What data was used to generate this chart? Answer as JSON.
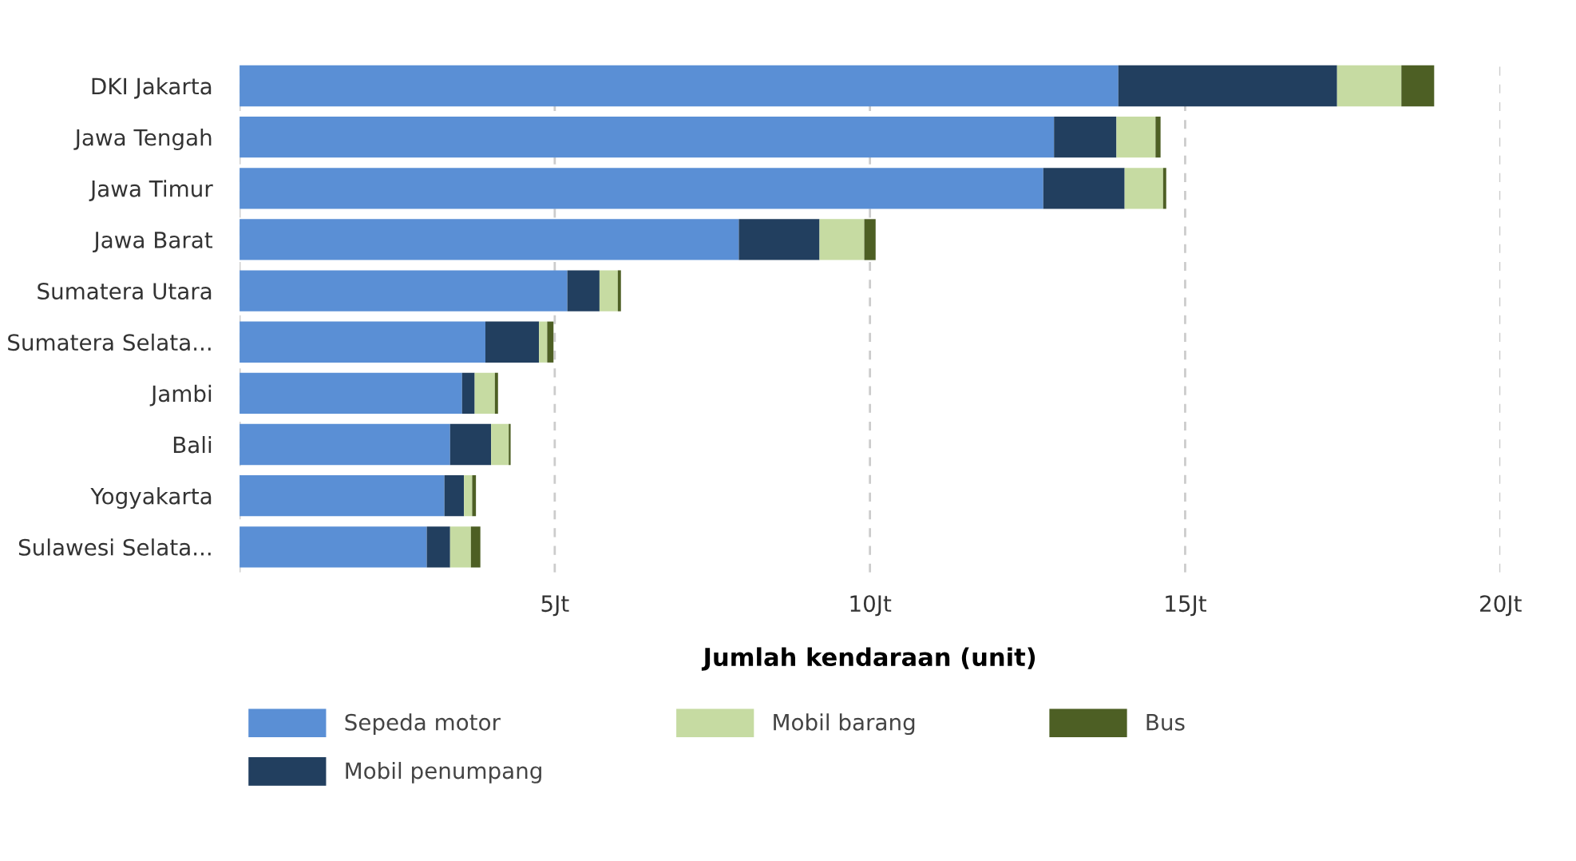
{
  "chart_data": {
    "type": "bar",
    "orientation": "horizontal",
    "stacked": true,
    "xlabel": "Jumlah kendaraan (unit)",
    "categories": [
      "DKI Jakarta",
      "Jawa Tengah",
      "Jawa Timur",
      "Jawa Barat",
      "Sumatera Utara",
      "Sumatera Selata...",
      "Jambi",
      "Bali",
      "Yogyakarta",
      "Sulawesi Selata..."
    ],
    "series": [
      {
        "name": "Sepeda motor",
        "color": "#5a8fd5",
        "values": [
          13.94,
          12.92,
          12.75,
          7.92,
          5.2,
          3.9,
          3.53,
          3.34,
          3.25,
          2.97
        ]
      },
      {
        "name": "Mobil penumpang",
        "color": "#223f5f",
        "values": [
          3.47,
          0.99,
          1.29,
          1.28,
          0.51,
          0.85,
          0.2,
          0.65,
          0.31,
          0.37
        ]
      },
      {
        "name": "Mobil barang",
        "color": "#c6dba2",
        "values": [
          1.02,
          0.62,
          0.61,
          0.71,
          0.29,
          0.13,
          0.32,
          0.28,
          0.13,
          0.33
        ]
      },
      {
        "name": "Bus",
        "color": "#4d5f24",
        "values": [
          0.52,
          0.08,
          0.05,
          0.18,
          0.05,
          0.1,
          0.05,
          0.03,
          0.06,
          0.15
        ]
      }
    ],
    "xlim": [
      0,
      20
    ],
    "xticks": [
      {
        "value": 0,
        "label": null
      },
      {
        "value": 5,
        "label": "5Jt"
      },
      {
        "value": 10,
        "label": "10Jt"
      },
      {
        "value": 15,
        "label": "15Jt"
      },
      {
        "value": 20,
        "label": "20Jt"
      }
    ],
    "grid": "x",
    "legend": "bottom"
  }
}
